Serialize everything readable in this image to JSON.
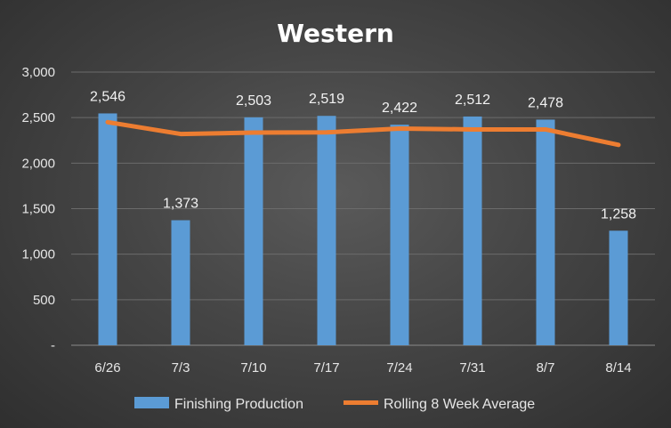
{
  "chart_data": {
    "type": "bar",
    "title": "Western",
    "categories": [
      "6/26",
      "7/3",
      "7/10",
      "7/17",
      "7/24",
      "7/31",
      "8/7",
      "8/14"
    ],
    "series": [
      {
        "name": "Finishing Production",
        "type": "bar",
        "values": [
          2546,
          1373,
          2503,
          2519,
          2422,
          2512,
          2478,
          1258
        ],
        "data_labels": [
          "2,546",
          "1,373",
          "2,503",
          "2,519",
          "2,422",
          "2,512",
          "2,478",
          "1,258"
        ],
        "color": "#5b9bd5"
      },
      {
        "name": "Rolling 8 Week Average",
        "type": "line",
        "values": [
          2450,
          2320,
          2335,
          2338,
          2380,
          2370,
          2370,
          2200
        ],
        "color": "#ed7d31"
      }
    ],
    "ylim": [
      0,
      3000
    ],
    "yticks": [
      0,
      500,
      1000,
      1500,
      2000,
      2500,
      3000
    ],
    "ytick_labels": [
      "-",
      "500",
      "1,000",
      "1,500",
      "2,000",
      "2,500",
      "3,000"
    ],
    "grid": true,
    "legend": "bottom",
    "xlabel": "",
    "ylabel": ""
  },
  "colors": {
    "gridline": "#6b6b6b",
    "axis": "#8a8a8a"
  }
}
